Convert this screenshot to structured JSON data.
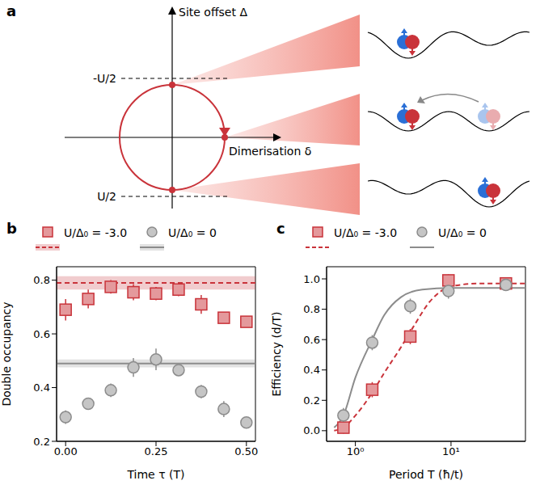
{
  "diagram": {
    "panel_label": "a",
    "vertical_axis": "Site offset Δ",
    "horizontal_axis": "Dimerisation δ",
    "levels": [
      {
        "label": "-U/2"
      },
      {
        "label": "U/2"
      }
    ]
  },
  "chart_data": [
    {
      "panel_label": "b",
      "type": "scatter",
      "x_label": "Time τ (T)",
      "y_label": "Double occupancy",
      "xlim": [
        -0.025,
        0.525
      ],
      "ylim": [
        0.2,
        0.85
      ],
      "xticks": [
        {
          "value": 0,
          "label": "0.00"
        },
        {
          "value": 0.25,
          "label": "0.25"
        },
        {
          "value": 0.5,
          "label": "0.50"
        }
      ],
      "yticks": [
        0.2,
        0.4,
        0.6,
        0.8
      ],
      "legend": "top",
      "series": [
        {
          "name": "U/Δ₀ = -3.0",
          "color": "#c9333a",
          "marker": "square",
          "x": [
            0,
            0.0625,
            0.125,
            0.1875,
            0.25,
            0.3125,
            0.375,
            0.4375,
            0.5
          ],
          "values": [
            0.69,
            0.73,
            0.775,
            0.755,
            0.75,
            0.765,
            0.71,
            0.66,
            0.645
          ],
          "errors": [
            0.04,
            0.035,
            0.025,
            0.03,
            0.025,
            0.025,
            0.035,
            0.02,
            0.02
          ],
          "reference": {
            "value": 0.79,
            "band": [
              0.765,
              0.815
            ],
            "line_style": "dashed"
          }
        },
        {
          "name": "U/Δ₀ = 0",
          "color": "#8c8c8c",
          "marker": "circle",
          "x": [
            0,
            0.0625,
            0.125,
            0.1875,
            0.25,
            0.3125,
            0.375,
            0.4375,
            0.5
          ],
          "values": [
            0.29,
            0.34,
            0.39,
            0.475,
            0.505,
            0.465,
            0.385,
            0.32,
            0.27
          ],
          "errors": [
            0.025,
            0.02,
            0.025,
            0.035,
            0.04,
            0.02,
            0.025,
            0.03,
            0.02
          ],
          "reference": {
            "value": 0.49,
            "band": [
              0.475,
              0.505
            ],
            "line_style": "solid"
          }
        }
      ]
    },
    {
      "panel_label": "c",
      "type": "scatter",
      "x_label": "Period T (ħ/t)",
      "y_label": "Efficiency (d/T)",
      "log": "x",
      "xlim": [
        0.5,
        60
      ],
      "ylim": [
        -0.07,
        1.08
      ],
      "xticks": [
        {
          "value": 1,
          "label": "10⁰"
        },
        {
          "value": 10,
          "label": "10¹"
        }
      ],
      "yticks": [
        {
          "value": 0,
          "label": "0.0"
        },
        0.2,
        0.4,
        0.6,
        0.8,
        {
          "value": 1,
          "label": "1.0"
        }
      ],
      "legend": "top",
      "series": [
        {
          "name": "U/Δ₀ = -3.0",
          "color": "#c9333a",
          "marker": "square",
          "x": [
            0.75,
            1.5,
            3.75,
            9.4,
            37.5
          ],
          "values": [
            0.02,
            0.27,
            0.62,
            0.99,
            0.97
          ],
          "errors": [
            0.04,
            0.05,
            0.05,
            0.04,
            0.02
          ],
          "fit": {
            "x": [
              0.6,
              0.75,
              1,
              1.5,
              2,
              3,
              4,
              6,
              10,
              20,
              60
            ],
            "values": [
              0.0,
              0.02,
              0.1,
              0.25,
              0.38,
              0.55,
              0.68,
              0.85,
              0.95,
              0.97,
              0.97
            ],
            "line_style": "dashed"
          }
        },
        {
          "name": "U/Δ₀ = 0",
          "color": "#8c8c8c",
          "marker": "circle",
          "x": [
            0.75,
            1.5,
            3.75,
            9.4,
            37.5
          ],
          "values": [
            0.1,
            0.58,
            0.82,
            0.92,
            0.96
          ],
          "errors": [
            0.05,
            0.05,
            0.05,
            0.05,
            0.03
          ],
          "fit": {
            "x": [
              0.6,
              0.75,
              1,
              1.5,
              2,
              3,
              5,
              10,
              60
            ],
            "values": [
              0.02,
              0.1,
              0.35,
              0.6,
              0.76,
              0.88,
              0.93,
              0.94,
              0.94
            ],
            "line_style": "solid"
          }
        }
      ]
    }
  ]
}
